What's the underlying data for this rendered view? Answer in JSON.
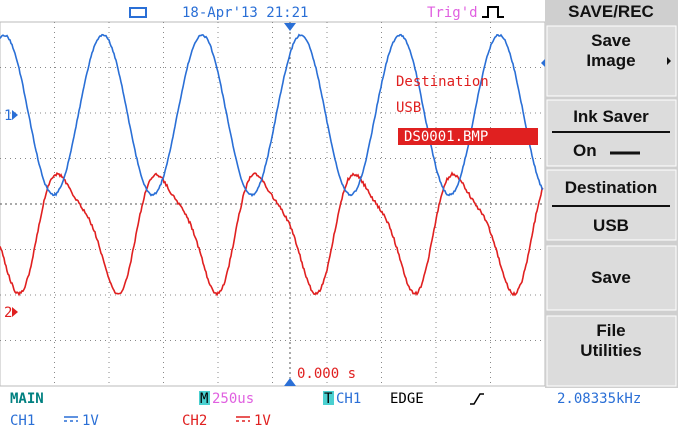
{
  "header": {
    "datetime": "18-Apr'13 21:21",
    "trigger_status": "Trig'd"
  },
  "menu": {
    "title": "SAVE/REC",
    "items": [
      {
        "label": "Save Image"
      },
      {
        "label": "Ink Saver",
        "value": "On"
      },
      {
        "label": "Destination",
        "value": "USB"
      },
      {
        "label": "Save"
      },
      {
        "label": "File Utilities"
      }
    ]
  },
  "overlay": {
    "label": "Destination",
    "device": "USB",
    "filename": "DS0001.BMP"
  },
  "markers": {
    "ch1": "1",
    "ch2": "2",
    "time_offset": "0.000 s"
  },
  "status": {
    "mode": "MAIN",
    "timebase_tag": "M",
    "timebase": "250us",
    "trigger_tag": "T",
    "trigger_source": "CH1",
    "trigger_type": "EDGE",
    "frequency": "2.08335kHz",
    "ch1_name": "CH1",
    "ch1_scale": "1V",
    "ch2_name": "CH2",
    "ch2_scale": "1V"
  }
}
